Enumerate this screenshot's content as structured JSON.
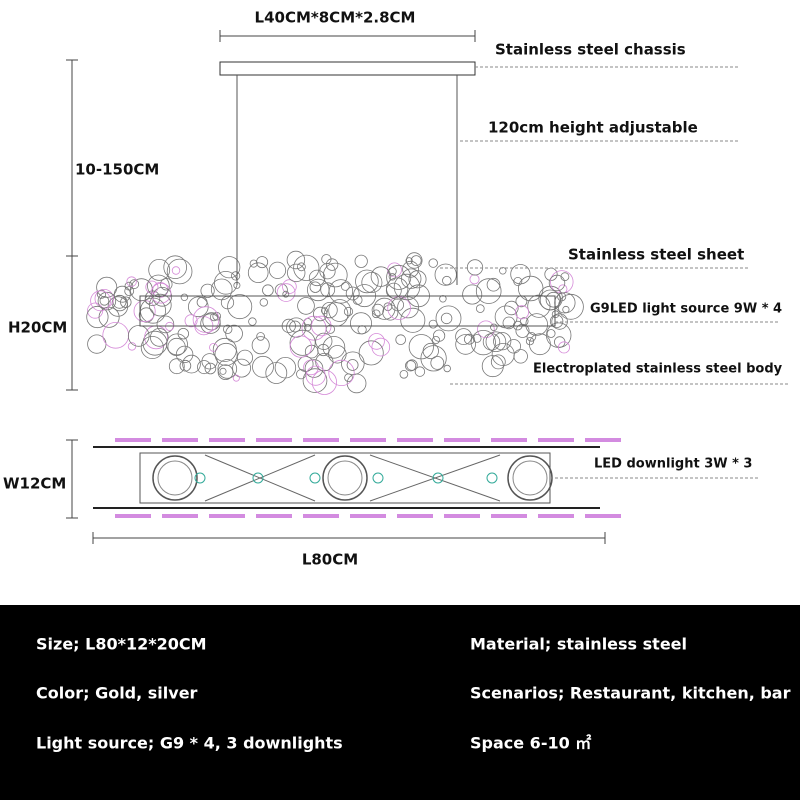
{
  "dimensions": {
    "chassis": "L40CM*8CM*2.8CM",
    "height": "10-150CM",
    "body_height": "H20CM",
    "width": "W12CM",
    "length": "L80CM"
  },
  "callouts": [
    "Stainless steel chassis",
    "120cm height adjustable",
    "Stainless steel sheet",
    "G9LED light source 9W * 4",
    "Electroplated stainless steel body",
    "LED downlight 3W * 3"
  ],
  "specs": {
    "left": [
      "Size; L80*12*20CM",
      "Color; Gold, silver",
      "Light source; G9 * 4, 3 downlights"
    ],
    "right": [
      "Material; stainless steel",
      "Scenarios; Restaurant, kitchen, bar",
      "Space 6-10 ㎡"
    ]
  }
}
